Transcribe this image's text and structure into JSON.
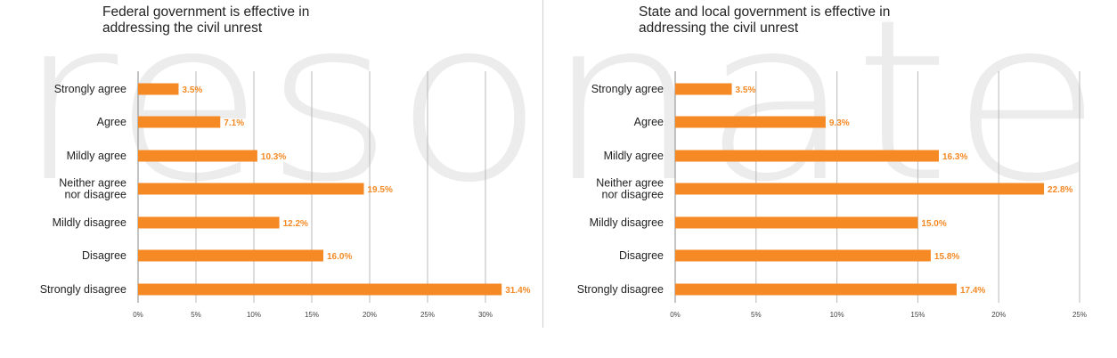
{
  "watermark": {
    "text": "resonate",
    "color": "#ececec"
  },
  "colors": {
    "bar": "#f58a25",
    "grid": "#b8b8b8",
    "axis": "#888888"
  },
  "chart_data": [
    {
      "type": "bar",
      "orientation": "horizontal",
      "title": "Federal government is effective in\naddressing the civil unrest",
      "categories": [
        "Strongly agree",
        "Agree",
        "Mildly agree",
        "Neither agree\nnor disagree",
        "Mildly disagree",
        "Disagree",
        "Strongly disagree"
      ],
      "values": [
        3.5,
        7.1,
        10.3,
        19.5,
        12.2,
        16.0,
        31.4
      ],
      "value_labels": [
        "3.5%",
        "7.1%",
        "10.3%",
        "19.5%",
        "12.2%",
        "16.0%",
        "31.4%"
      ],
      "xlim": [
        0,
        32
      ],
      "xticks": [
        0,
        5,
        10,
        15,
        20,
        25,
        30
      ],
      "xtick_labels": [
        "0%",
        "5%",
        "10%",
        "15%",
        "20%",
        "25%",
        "30%"
      ],
      "grid": true
    },
    {
      "type": "bar",
      "orientation": "horizontal",
      "title": "State and local government is effective in\naddressing the civil unrest",
      "categories": [
        "Strongly agree",
        "Agree",
        "Mildly agree",
        "Neither agree\nnor disagree",
        "Mildly disagree",
        "Disagree",
        "Strongly disagree"
      ],
      "values": [
        3.5,
        9.3,
        16.3,
        22.8,
        15.0,
        15.8,
        17.4
      ],
      "value_labels": [
        "3.5%",
        "9.3%",
        "16.3%",
        "22.8%",
        "15.0%",
        "15.8%",
        "17.4%"
      ],
      "xlim": [
        0,
        25
      ],
      "xticks": [
        0,
        5,
        10,
        15,
        20,
        25
      ],
      "xtick_labels": [
        "0%",
        "5%",
        "10%",
        "15%",
        "20%",
        "25%"
      ],
      "grid": true
    }
  ]
}
